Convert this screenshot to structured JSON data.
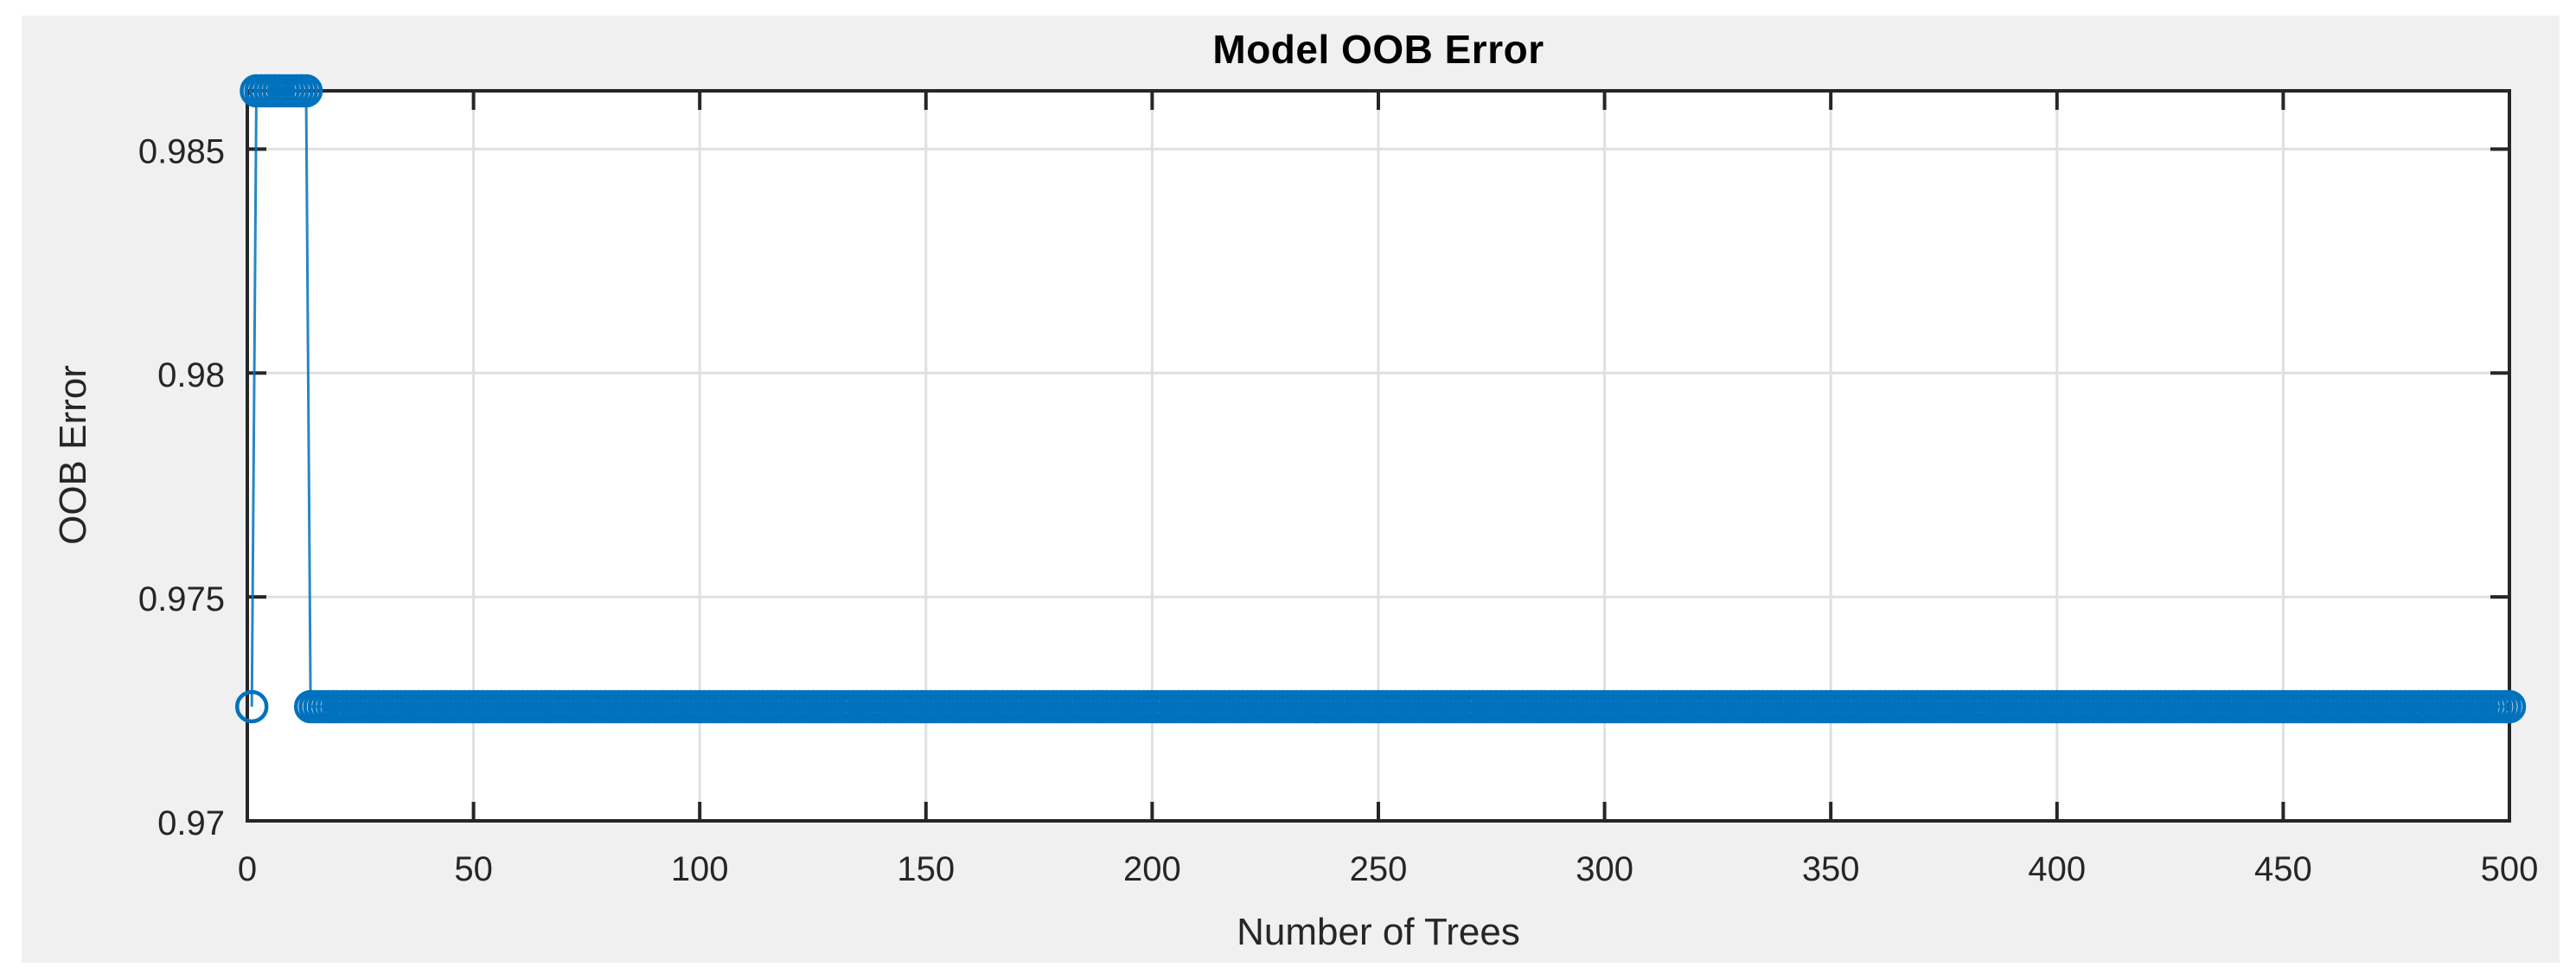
{
  "figure": {
    "background_color": "#f0f0f0",
    "plot_background_color": "#ffffff",
    "axis_color": "#262626",
    "grid_color": "#e0e0e0",
    "text_color": "#262626",
    "title_color": "#000000"
  },
  "chart_data": {
    "type": "line",
    "title": "Model OOB Error",
    "xlabel": "Number of Trees",
    "ylabel": "OOB Error",
    "xlim": [
      0,
      500
    ],
    "ylim": [
      0.97,
      0.9863
    ],
    "x_ticks": [
      0,
      50,
      100,
      150,
      200,
      250,
      300,
      350,
      400,
      450,
      500
    ],
    "x_tick_labels": [
      "0",
      "50",
      "100",
      "150",
      "200",
      "250",
      "300",
      "350",
      "400",
      "450",
      "500"
    ],
    "y_ticks": [
      0.97,
      0.975,
      0.98,
      0.985
    ],
    "y_tick_labels": [
      "0.97",
      "0.975",
      "0.98",
      "0.985"
    ],
    "grid": true,
    "tick_direction": "in",
    "box": true,
    "legend": "none",
    "marker": "open-circle",
    "line_color": "#0072BD",
    "series": [
      {
        "name": "OOB Error",
        "segments": [
          {
            "x_start": 1,
            "x_end": 1,
            "y": 0.97255
          },
          {
            "x_start": 2,
            "x_end": 13,
            "y": 0.9863
          },
          {
            "x_start": 14,
            "x_end": 500,
            "y": 0.97255
          }
        ]
      }
    ]
  }
}
